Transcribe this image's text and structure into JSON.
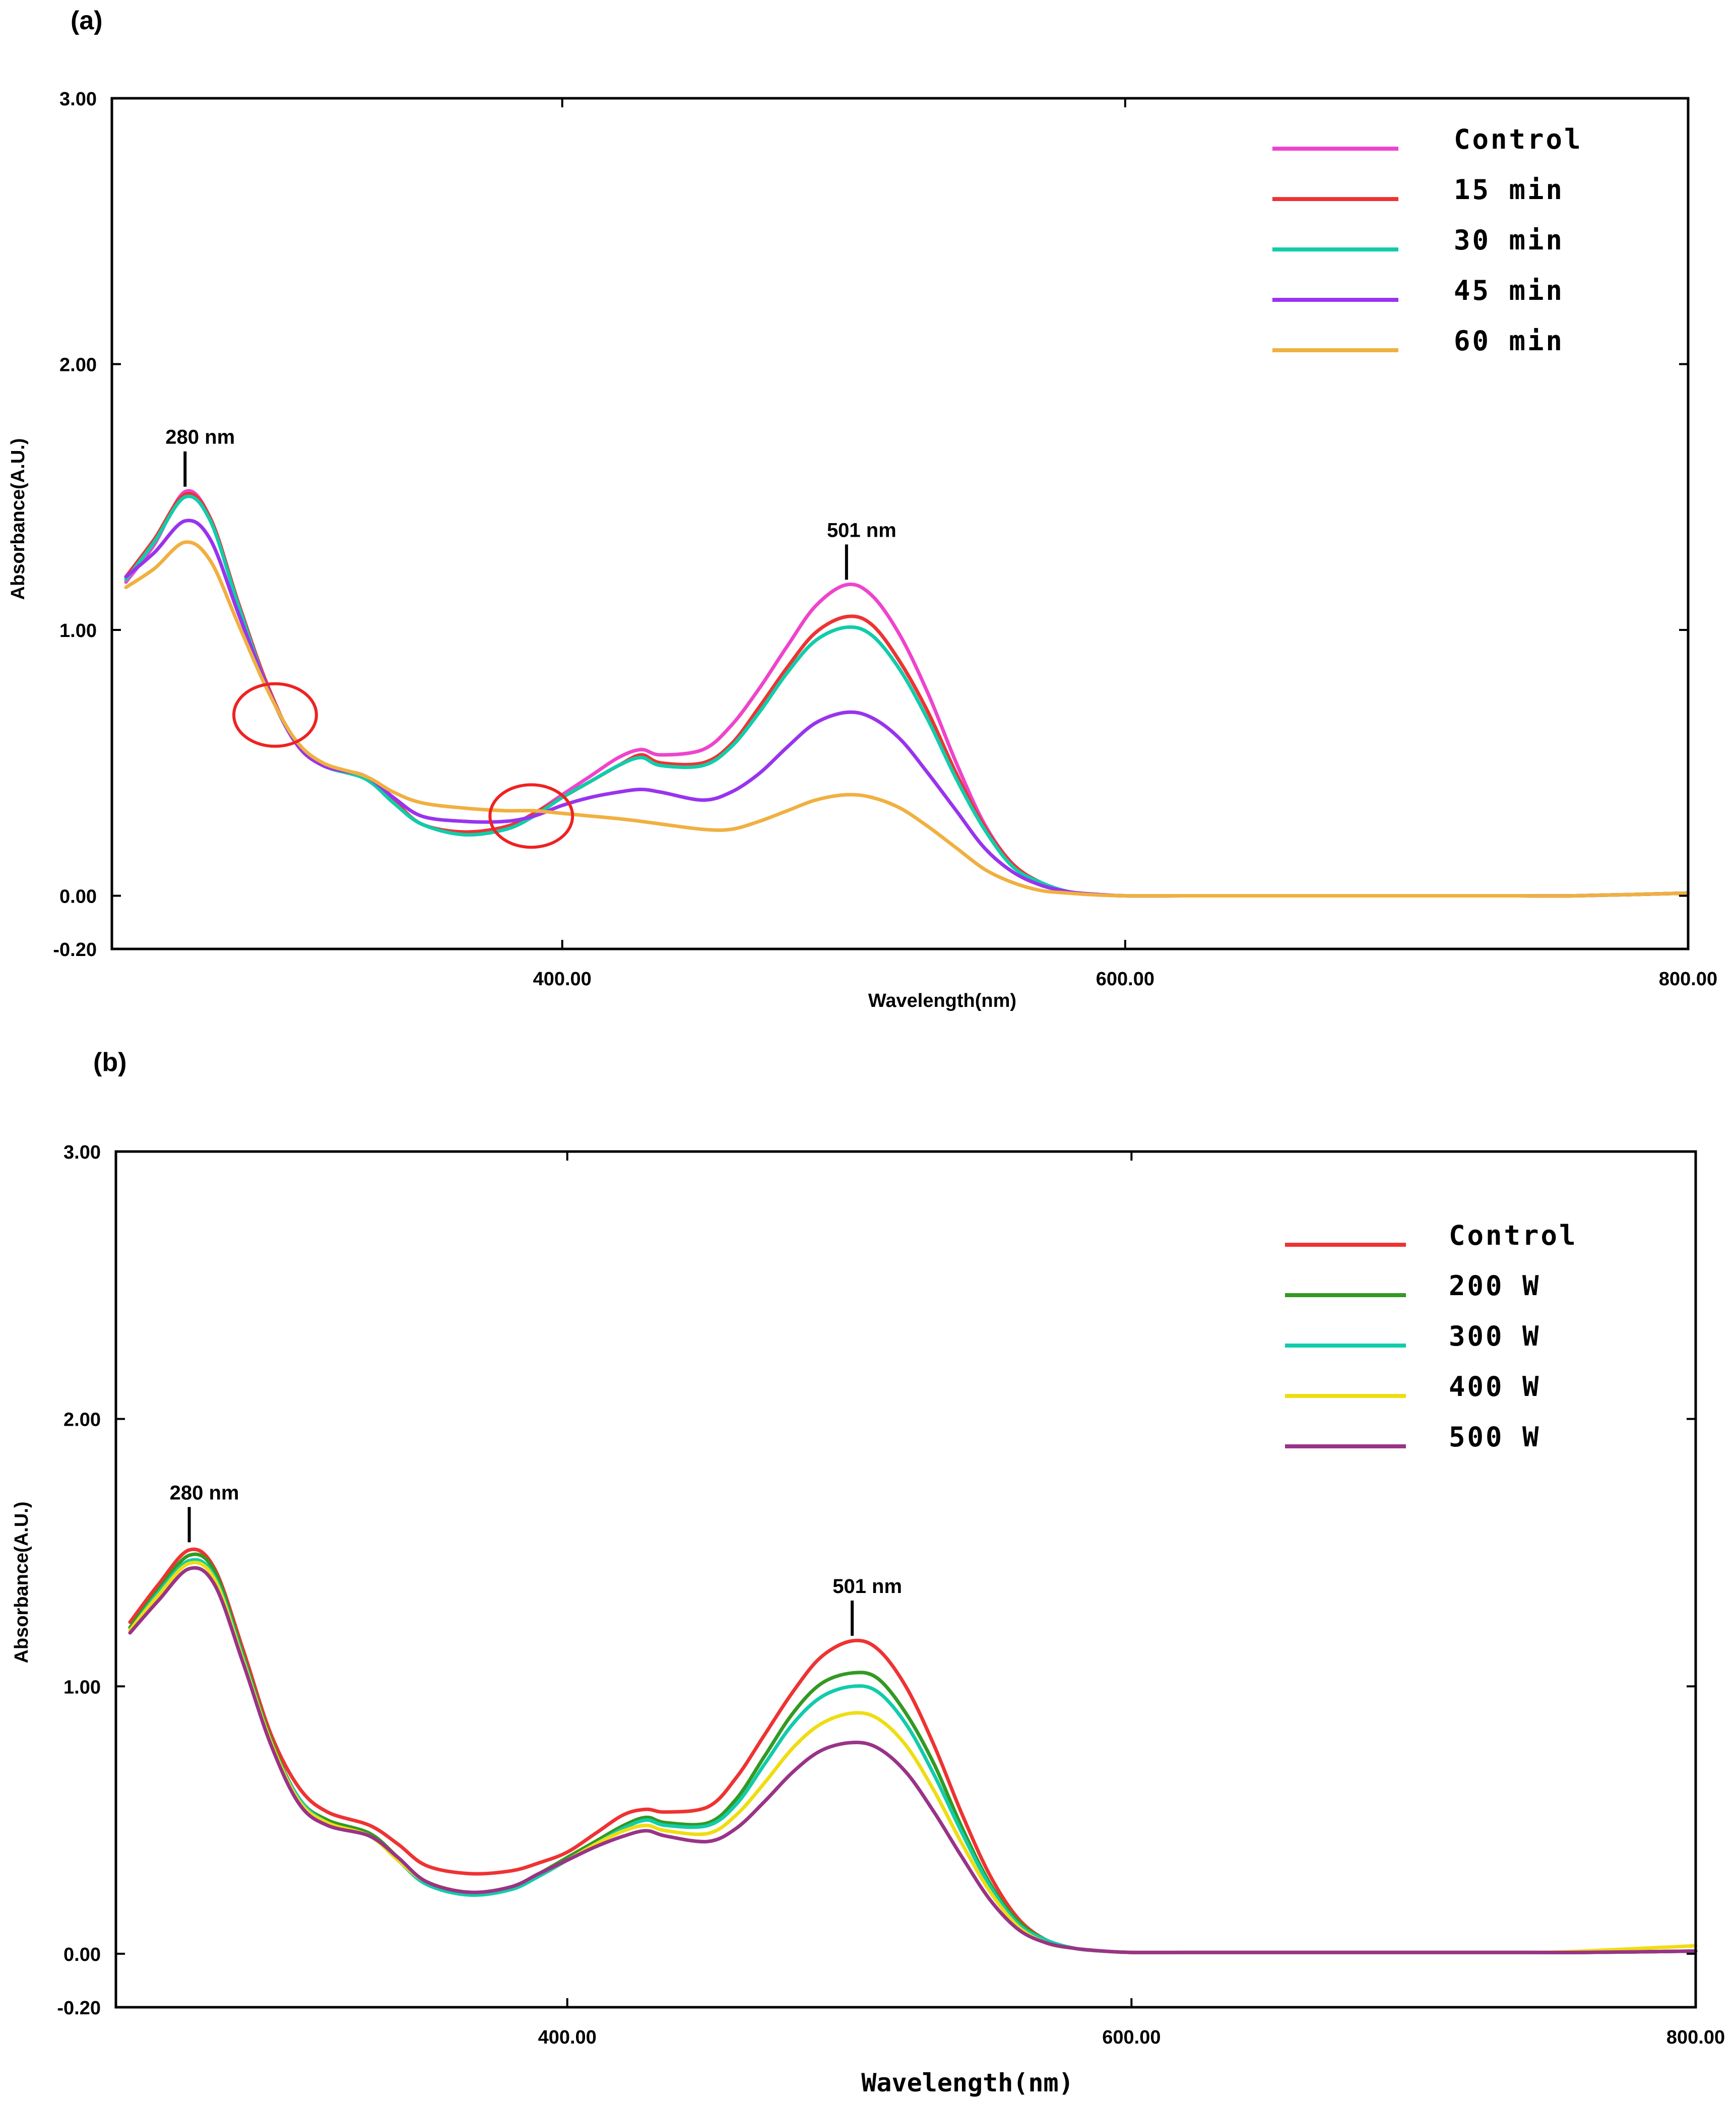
{
  "chart_data": [
    {
      "type": "line",
      "panel_label": "(a)",
      "title": "",
      "xlabel": "Wavelength(nm)",
      "ylabel": "Absorbance(A.U.)",
      "xlim": [
        240,
        800
      ],
      "ylim": [
        -0.2,
        3.0
      ],
      "x_ticks": [
        400,
        600,
        800
      ],
      "x_tick_labels": [
        "400.00",
        "600.00",
        "800.00"
      ],
      "y_ticks": [
        3.0,
        2.0,
        1.0,
        0.0,
        -0.2
      ],
      "y_tick_labels": [
        "3.00",
        "2.00",
        "1.00",
        "0.00",
        "-0.20"
      ],
      "grid": false,
      "legend_position": "top-right",
      "annotations": [
        {
          "text": "280 nm",
          "x": 266,
          "y": 1.52
        },
        {
          "text": "501 nm",
          "x": 501,
          "y": 1.17
        }
      ],
      "circled_points": [
        {
          "x": 298,
          "y": 0.68
        },
        {
          "x": 389,
          "y": 0.3
        }
      ],
      "x": [
        245,
        255,
        266,
        275,
        285,
        295,
        305,
        315,
        330,
        340,
        350,
        365,
        380,
        390,
        400,
        410,
        420,
        428,
        435,
        450,
        460,
        470,
        480,
        490,
        501,
        510,
        520,
        530,
        540,
        550,
        560,
        570,
        580,
        590,
        600,
        620,
        650,
        700,
        740,
        760,
        800
      ],
      "series": [
        {
          "name": "Control",
          "color": "#ee44cc",
          "values": [
            1.18,
            1.32,
            1.52,
            1.42,
            1.1,
            0.8,
            0.58,
            0.49,
            0.45,
            0.36,
            0.27,
            0.24,
            0.26,
            0.31,
            0.38,
            0.45,
            0.52,
            0.55,
            0.53,
            0.55,
            0.64,
            0.78,
            0.94,
            1.09,
            1.17,
            1.13,
            0.98,
            0.76,
            0.5,
            0.27,
            0.12,
            0.05,
            0.015,
            0.005,
            0.0,
            0.0,
            0.0,
            0.0,
            0.0,
            0.0,
            0.01
          ]
        },
        {
          "name": "15 min",
          "color": "#ee3333",
          "values": [
            1.2,
            1.34,
            1.51,
            1.42,
            1.1,
            0.8,
            0.58,
            0.49,
            0.45,
            0.36,
            0.27,
            0.24,
            0.26,
            0.31,
            0.37,
            0.43,
            0.49,
            0.53,
            0.5,
            0.5,
            0.57,
            0.71,
            0.86,
            0.99,
            1.05,
            1.02,
            0.88,
            0.69,
            0.46,
            0.26,
            0.12,
            0.05,
            0.015,
            0.005,
            0.0,
            0.0,
            0.0,
            0.0,
            0.0,
            0.0,
            0.01
          ]
        },
        {
          "name": "30 min",
          "color": "#11ccaa",
          "values": [
            1.19,
            1.33,
            1.5,
            1.41,
            1.09,
            0.79,
            0.58,
            0.49,
            0.44,
            0.35,
            0.27,
            0.23,
            0.25,
            0.3,
            0.37,
            0.43,
            0.49,
            0.52,
            0.49,
            0.49,
            0.56,
            0.69,
            0.84,
            0.96,
            1.01,
            0.98,
            0.85,
            0.66,
            0.44,
            0.25,
            0.11,
            0.05,
            0.015,
            0.005,
            0.0,
            0.0,
            0.0,
            0.0,
            0.0,
            0.0,
            0.01
          ]
        },
        {
          "name": "45 min",
          "color": "#9933ee",
          "values": [
            1.2,
            1.29,
            1.41,
            1.34,
            1.06,
            0.79,
            0.58,
            0.49,
            0.45,
            0.37,
            0.3,
            0.28,
            0.28,
            0.3,
            0.34,
            0.37,
            0.39,
            0.4,
            0.39,
            0.36,
            0.39,
            0.46,
            0.56,
            0.65,
            0.69,
            0.67,
            0.59,
            0.46,
            0.32,
            0.18,
            0.09,
            0.04,
            0.015,
            0.005,
            0.0,
            0.0,
            0.0,
            0.0,
            0.0,
            0.0,
            0.01
          ]
        },
        {
          "name": "60 min",
          "color": "#f0b040",
          "values": [
            1.16,
            1.23,
            1.33,
            1.26,
            1.02,
            0.78,
            0.59,
            0.5,
            0.45,
            0.39,
            0.35,
            0.33,
            0.32,
            0.32,
            0.31,
            0.3,
            0.29,
            0.28,
            0.27,
            0.25,
            0.25,
            0.28,
            0.32,
            0.36,
            0.38,
            0.37,
            0.33,
            0.26,
            0.18,
            0.1,
            0.05,
            0.02,
            0.01,
            0.003,
            0.0,
            0.0,
            0.0,
            0.0,
            0.0,
            0.0,
            0.01
          ]
        }
      ]
    },
    {
      "type": "line",
      "panel_label": "(b)",
      "title": "",
      "xlabel": "Wavelength(nm)",
      "ylabel": "Absorbance(A.U.)",
      "xlim": [
        240,
        800
      ],
      "ylim": [
        -0.2,
        3.0
      ],
      "x_ticks": [
        400,
        600,
        800
      ],
      "x_tick_labels": [
        "400.00",
        "600.00",
        "800.00"
      ],
      "y_ticks": [
        3.0,
        2.0,
        1.0,
        0.0,
        -0.2
      ],
      "y_tick_labels": [
        "3.00",
        "2.00",
        "1.00",
        "0.00",
        "-0.20"
      ],
      "grid": false,
      "legend_position": "top-right",
      "annotations": [
        {
          "text": "280 nm",
          "x": 266,
          "y": 1.52
        },
        {
          "text": "501 nm",
          "x": 501,
          "y": 1.17
        }
      ],
      "x": [
        245,
        255,
        266,
        275,
        285,
        295,
        305,
        315,
        330,
        340,
        350,
        365,
        380,
        390,
        400,
        410,
        420,
        428,
        435,
        450,
        460,
        470,
        480,
        490,
        501,
        510,
        520,
        530,
        540,
        550,
        560,
        570,
        580,
        590,
        600,
        620,
        650,
        700,
        740,
        760,
        800
      ],
      "series": [
        {
          "name": "Control",
          "color": "#ee3333",
          "values": [
            1.24,
            1.38,
            1.51,
            1.44,
            1.14,
            0.82,
            0.62,
            0.53,
            0.48,
            0.41,
            0.33,
            0.3,
            0.31,
            0.34,
            0.38,
            0.45,
            0.52,
            0.54,
            0.53,
            0.55,
            0.66,
            0.82,
            0.98,
            1.11,
            1.17,
            1.14,
            1.0,
            0.78,
            0.52,
            0.29,
            0.13,
            0.05,
            0.02,
            0.01,
            0.005,
            0.005,
            0.005,
            0.005,
            0.005,
            0.005,
            0.01
          ]
        },
        {
          "name": "200 W",
          "color": "#339922",
          "values": [
            1.22,
            1.36,
            1.49,
            1.43,
            1.12,
            0.8,
            0.58,
            0.5,
            0.45,
            0.36,
            0.27,
            0.23,
            0.25,
            0.3,
            0.36,
            0.42,
            0.48,
            0.51,
            0.49,
            0.49,
            0.58,
            0.74,
            0.9,
            1.01,
            1.05,
            1.03,
            0.9,
            0.71,
            0.47,
            0.26,
            0.12,
            0.05,
            0.02,
            0.01,
            0.005,
            0.005,
            0.005,
            0.005,
            0.005,
            0.005,
            0.01
          ]
        },
        {
          "name": "300 W",
          "color": "#11ccaa",
          "values": [
            1.21,
            1.35,
            1.47,
            1.41,
            1.11,
            0.79,
            0.58,
            0.49,
            0.44,
            0.35,
            0.26,
            0.22,
            0.24,
            0.29,
            0.35,
            0.41,
            0.47,
            0.5,
            0.48,
            0.48,
            0.56,
            0.71,
            0.86,
            0.96,
            1.0,
            0.98,
            0.86,
            0.67,
            0.45,
            0.25,
            0.11,
            0.05,
            0.02,
            0.01,
            0.005,
            0.005,
            0.005,
            0.005,
            0.005,
            0.005,
            0.01
          ]
        },
        {
          "name": "400 W",
          "color": "#eedd11",
          "values": [
            1.21,
            1.34,
            1.46,
            1.4,
            1.1,
            0.79,
            0.57,
            0.49,
            0.44,
            0.35,
            0.27,
            0.23,
            0.25,
            0.3,
            0.35,
            0.41,
            0.46,
            0.48,
            0.46,
            0.45,
            0.52,
            0.64,
            0.77,
            0.86,
            0.9,
            0.88,
            0.78,
            0.61,
            0.41,
            0.23,
            0.1,
            0.04,
            0.02,
            0.01,
            0.005,
            0.005,
            0.005,
            0.005,
            0.005,
            0.01,
            0.03
          ]
        },
        {
          "name": "500 W",
          "color": "#993388",
          "values": [
            1.2,
            1.32,
            1.44,
            1.38,
            1.09,
            0.78,
            0.56,
            0.48,
            0.44,
            0.36,
            0.27,
            0.23,
            0.25,
            0.3,
            0.35,
            0.4,
            0.44,
            0.46,
            0.44,
            0.42,
            0.47,
            0.57,
            0.68,
            0.76,
            0.79,
            0.77,
            0.68,
            0.53,
            0.36,
            0.2,
            0.09,
            0.04,
            0.02,
            0.01,
            0.005,
            0.005,
            0.005,
            0.005,
            0.005,
            0.005,
            0.01
          ]
        }
      ]
    }
  ]
}
